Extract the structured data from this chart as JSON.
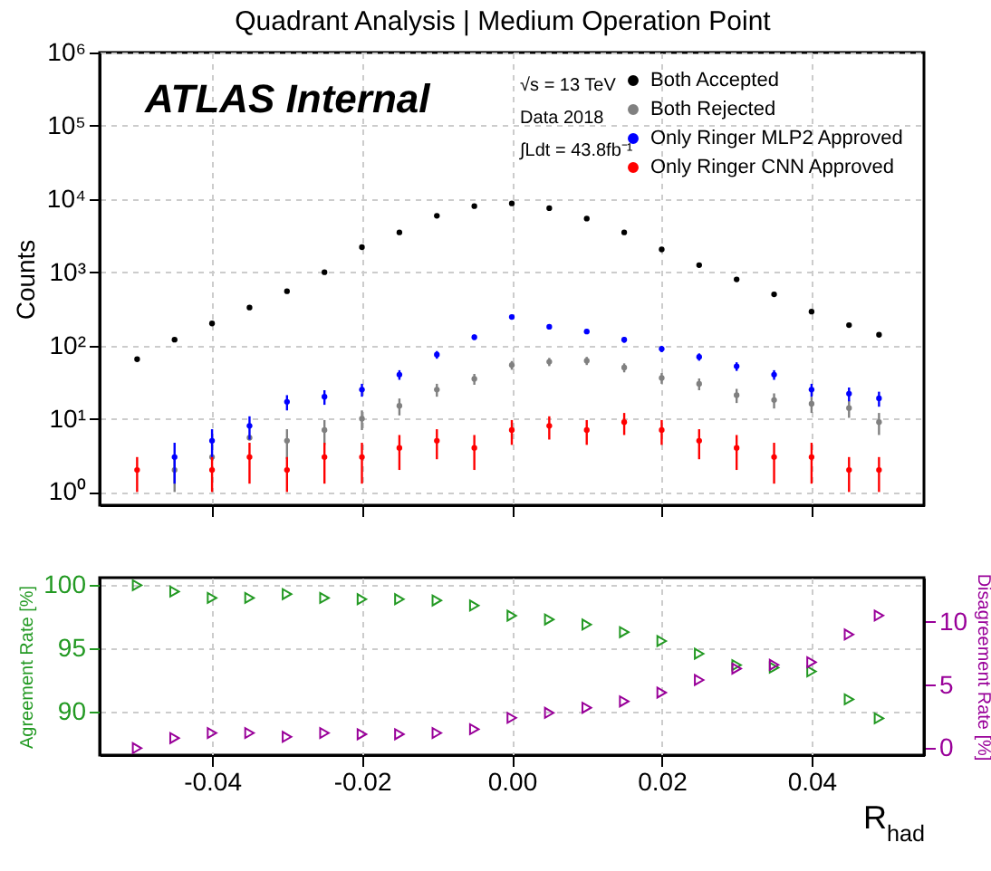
{
  "chart_data": [
    {
      "type": "scatter",
      "title": "Quadrant Analysis | Medium Operation Point",
      "ylabel": "Counts",
      "annotations": [
        "ATLAS Internal",
        "√s = 13 TeV",
        "Data 2018",
        "∫Ldt = 43.8fb⁻¹"
      ],
      "log": "y",
      "grid": true,
      "legend": "top right",
      "marker": "circle",
      "tick_labels": "y",
      "x": [
        -0.05,
        -0.045,
        -0.04,
        -0.035,
        -0.03,
        -0.025,
        -0.02,
        -0.015,
        -0.01,
        -0.005,
        0,
        0.005,
        0.01,
        0.015,
        0.02,
        0.025,
        0.03,
        0.035,
        0.04,
        0.045,
        0.049
      ],
      "xlim": [
        -0.055,
        0.055
      ],
      "xticks": [
        -0.04,
        -0.02,
        0,
        0.02,
        0.04
      ],
      "ylim": [
        0.66,
        1000000
      ],
      "yticks": [
        {
          "value": 1,
          "label": "10⁰"
        },
        {
          "value": 10,
          "label": "10¹"
        },
        {
          "value": 100,
          "label": "10²"
        },
        {
          "value": 1000,
          "label": "10³"
        },
        {
          "value": 10000,
          "label": "10⁴"
        },
        {
          "value": 100000,
          "label": "10⁵"
        },
        {
          "value": 1000000,
          "label": "10⁶"
        }
      ],
      "series": [
        {
          "name": "Both Accepted",
          "color": "#000000",
          "values": [
            65,
            120,
            200,
            330,
            550,
            1000,
            2200,
            3500,
            5900,
            8000,
            8700,
            7500,
            5400,
            3500,
            2050,
            1250,
            800,
            500,
            290,
            190,
            140
          ]
        },
        {
          "name": "Both Rejected",
          "color": "#808080",
          "values": [
            null,
            2,
            3,
            5.5,
            5,
            7,
            10,
            15,
            25,
            35,
            54,
            60,
            62,
            50,
            36,
            30,
            21,
            18,
            16,
            14,
            9
          ],
          "errors": [
            null,
            1,
            null,
            null,
            2.2,
            2.6,
            3,
            3.9,
            5,
            5.9,
            7.3,
            7.7,
            7.9,
            7,
            6,
            5.5,
            4.6,
            4.2,
            4,
            3.7,
            3
          ]
        },
        {
          "name": "Only Ringer MLP2 Approved",
          "color": "#0000ff",
          "values": [
            null,
            3,
            5,
            8,
            17,
            20,
            25,
            40,
            75,
            130,
            245,
            180,
            155,
            120,
            90,
            70,
            52,
            40,
            25,
            22,
            19
          ],
          "errors": [
            null,
            1.7,
            2.2,
            2.8,
            4,
            4.5,
            5,
            6,
            9,
            11,
            16,
            13,
            12,
            11,
            9,
            8,
            7,
            6,
            5,
            4.7,
            4.4
          ]
        },
        {
          "name": "Only Ringer CNN Approved",
          "color": "#ff0000",
          "values": [
            2,
            null,
            2,
            3,
            2,
            3,
            3,
            4,
            5,
            4,
            7,
            8,
            7,
            9,
            7,
            5,
            4,
            3,
            3,
            2,
            2
          ],
          "errors": [
            1,
            null,
            1,
            1.7,
            1,
            1.7,
            1.7,
            2,
            2.2,
            2,
            2.6,
            2.8,
            2.6,
            3,
            2.6,
            2.2,
            2,
            1.7,
            1.7,
            1,
            1
          ]
        }
      ]
    },
    {
      "type": "scatter",
      "xlabel": "R$_{had}$",
      "ylabel": "Agreement Rate [%]",
      "y2label": "Disagreement Rate [%]",
      "grid": true,
      "marker": "triangle",
      "x": [
        -0.05,
        -0.045,
        -0.04,
        -0.035,
        -0.03,
        -0.025,
        -0.02,
        -0.015,
        -0.01,
        -0.005,
        0,
        0.005,
        0.01,
        0.015,
        0.02,
        0.025,
        0.03,
        0.035,
        0.04,
        0.045,
        0.049
      ],
      "xlim": [
        -0.055,
        0.055
      ],
      "xticks": [
        -0.04,
        -0.02,
        {
          "value": 0,
          "label": "0.00"
        },
        0.02,
        0.04
      ],
      "ylim": [
        86.6,
        100.6
      ],
      "yticks": [
        90,
        95,
        100
      ],
      "y2lim": [
        -0.55,
        13.5
      ],
      "y2ticks": [
        0,
        5,
        10
      ],
      "series": [
        {
          "color": "#229922",
          "values": [
            100,
            99.5,
            99,
            99,
            99.3,
            99,
            98.9,
            98.9,
            98.8,
            98.4,
            97.6,
            97.3,
            96.9,
            96.3,
            95.6,
            94.6,
            93.7,
            93.5,
            93.2,
            91,
            89.5
          ]
        },
        {
          "color": "#990099",
          "axis": "y2",
          "values": [
            0,
            0.8,
            1.2,
            1.2,
            0.9,
            1.2,
            1.1,
            1.1,
            1.2,
            1.5,
            2.4,
            2.8,
            3.2,
            3.7,
            4.4,
            5.4,
            6.3,
            6.6,
            6.8,
            9,
            10.5
          ]
        }
      ]
    }
  ]
}
